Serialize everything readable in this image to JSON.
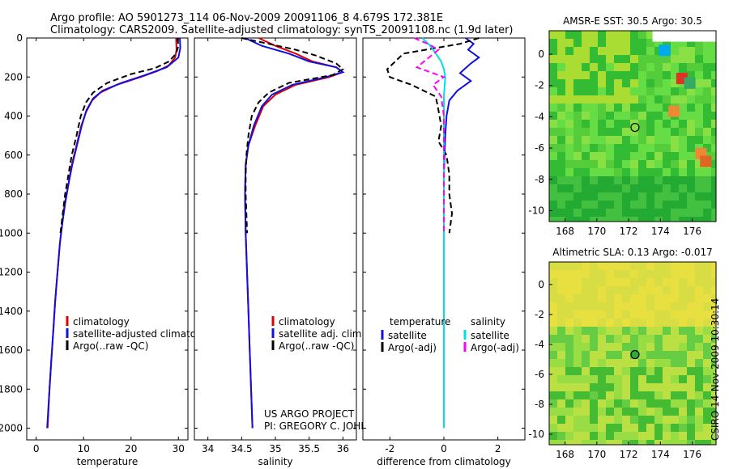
{
  "header": {
    "line1": "Argo profile: AO 5901273_114 06-Nov-2009 20091106_8 4.679S 172.381E",
    "line2": "Climatology: CARS2009. Satellite-adjusted climatology: synTS_20091108.nc (1.9d later)"
  },
  "side_label": "CSIRO 14-Nov-2009 10:30:14",
  "colors": {
    "climatology": "#e00000",
    "satellite": "#1010e0",
    "argo": "#000000",
    "salinity_satellite": "#00e0e0",
    "salinity_argo": "#ff00ff"
  },
  "chart_data": [
    {
      "type": "line",
      "id": "temperature",
      "xlabel": "temperature",
      "ylabel": "",
      "xlim": [
        -2,
        32
      ],
      "ylim": [
        2060,
        0
      ],
      "x_ticks": [
        0,
        10,
        20,
        30
      ],
      "y_ticks": [
        0,
        200,
        400,
        600,
        800,
        1000,
        1200,
        1400,
        1600,
        1800,
        2000
      ],
      "legend": [
        "climatology",
        "satellite-adjusted climatology",
        "Argo(..raw -QC)"
      ],
      "series": [
        {
          "name": "climatology",
          "color": "#e00000",
          "dash": false,
          "points": [
            [
              29.5,
              0
            ],
            [
              29.6,
              60
            ],
            [
              29.3,
              100
            ],
            [
              28,
              140
            ],
            [
              25.5,
              170
            ],
            [
              22,
              200
            ],
            [
              17,
              240
            ],
            [
              13.5,
              280
            ],
            [
              11.8,
              320
            ],
            [
              10.5,
              380
            ],
            [
              9.5,
              450
            ],
            [
              8.5,
              550
            ],
            [
              7.5,
              650
            ],
            [
              6.8,
              750
            ],
            [
              6,
              850
            ],
            [
              5.5,
              950
            ],
            [
              5,
              1050
            ],
            [
              4.5,
              1200
            ],
            [
              4,
              1350
            ],
            [
              3.6,
              1500
            ],
            [
              3.2,
              1650
            ],
            [
              2.8,
              1800
            ],
            [
              2.4,
              2000
            ]
          ]
        },
        {
          "name": "satellite-adjusted climatology",
          "color": "#1010e0",
          "dash": false,
          "points": [
            [
              30.3,
              0
            ],
            [
              30.4,
              50
            ],
            [
              30,
              100
            ],
            [
              27.5,
              150
            ],
            [
              23,
              190
            ],
            [
              18,
              230
            ],
            [
              14,
              270
            ],
            [
              12,
              310
            ],
            [
              10.6,
              370
            ],
            [
              9.6,
              450
            ],
            [
              8.6,
              550
            ],
            [
              7.6,
              650
            ],
            [
              6.8,
              750
            ],
            [
              6.1,
              850
            ],
            [
              5.5,
              950
            ],
            [
              5,
              1050
            ],
            [
              4.5,
              1200
            ],
            [
              4,
              1350
            ],
            [
              3.6,
              1500
            ],
            [
              3.2,
              1650
            ],
            [
              2.8,
              1800
            ],
            [
              2.3,
              2000
            ]
          ]
        },
        {
          "name": "Argo(..raw -QC)",
          "color": "#000000",
          "dash": true,
          "points": [
            [
              29.8,
              0
            ],
            [
              30,
              40
            ],
            [
              29.5,
              80
            ],
            [
              28,
              120
            ],
            [
              25,
              155
            ],
            [
              20,
              185
            ],
            [
              15,
              230
            ],
            [
              12,
              280
            ],
            [
              10.5,
              330
            ],
            [
              9.4,
              400
            ],
            [
              8.5,
              500
            ],
            [
              7.5,
              600
            ],
            [
              6.8,
              700
            ],
            [
              6.1,
              800
            ],
            [
              5.6,
              900
            ],
            [
              5.1,
              1000
            ]
          ]
        }
      ]
    },
    {
      "type": "line",
      "id": "salinity",
      "xlabel": "salinity",
      "xlim": [
        33.8,
        36.2
      ],
      "ylim": [
        2060,
        0
      ],
      "x_ticks": [
        34,
        34.5,
        35,
        35.5,
        36
      ],
      "x_tick_labels": [
        "34",
        "34.5",
        "35",
        "35.5",
        "36"
      ],
      "legend": [
        "climatology",
        "satellite adj. clim.",
        "Argo(..raw -QC)"
      ],
      "annotation": [
        "US ARGO PROJECT",
        "PI: GREGORY C. JOHNSON"
      ],
      "series": [
        {
          "name": "climatology",
          "color": "#e00000",
          "dash": false,
          "points": [
            [
              34.75,
              0
            ],
            [
              35.0,
              40
            ],
            [
              35.3,
              80
            ],
            [
              35.55,
              120
            ],
            [
              35.9,
              150
            ],
            [
              36.0,
              175
            ],
            [
              35.8,
              200
            ],
            [
              35.3,
              240
            ],
            [
              35.0,
              290
            ],
            [
              34.82,
              350
            ],
            [
              34.7,
              450
            ],
            [
              34.6,
              550
            ],
            [
              34.56,
              650
            ],
            [
              34.55,
              800
            ],
            [
              34.56,
              1000
            ],
            [
              34.58,
              1200
            ],
            [
              34.6,
              1400
            ],
            [
              34.62,
              1600
            ],
            [
              34.64,
              1800
            ],
            [
              34.66,
              2000
            ]
          ]
        },
        {
          "name": "satellite adj. clim.",
          "color": "#1010e0",
          "dash": false,
          "points": [
            [
              34.55,
              0
            ],
            [
              34.8,
              40
            ],
            [
              35.2,
              80
            ],
            [
              35.5,
              120
            ],
            [
              35.9,
              150
            ],
            [
              36.0,
              175
            ],
            [
              35.75,
              200
            ],
            [
              35.25,
              240
            ],
            [
              34.95,
              290
            ],
            [
              34.8,
              350
            ],
            [
              34.68,
              450
            ],
            [
              34.6,
              550
            ],
            [
              34.56,
              650
            ],
            [
              34.55,
              800
            ],
            [
              34.56,
              1000
            ],
            [
              34.58,
              1200
            ],
            [
              34.6,
              1400
            ],
            [
              34.62,
              1600
            ],
            [
              34.64,
              1800
            ],
            [
              34.66,
              2000
            ]
          ]
        },
        {
          "name": "Argo(..raw -QC)",
          "color": "#000000",
          "dash": true,
          "points": [
            [
              34.5,
              0
            ],
            [
              34.9,
              30
            ],
            [
              35.3,
              60
            ],
            [
              35.6,
              90
            ],
            [
              35.9,
              130
            ],
            [
              36.0,
              160
            ],
            [
              35.85,
              190
            ],
            [
              35.2,
              230
            ],
            [
              34.9,
              280
            ],
            [
              34.75,
              330
            ],
            [
              34.65,
              400
            ],
            [
              34.6,
              500
            ],
            [
              34.57,
              600
            ],
            [
              34.56,
              700
            ],
            [
              34.56,
              800
            ],
            [
              34.57,
              900
            ],
            [
              34.58,
              1000
            ]
          ]
        }
      ]
    },
    {
      "type": "line",
      "id": "difference",
      "xlabel": "difference from climatology",
      "xlim": [
        -3,
        3
      ],
      "ylim": [
        2060,
        0
      ],
      "x_ticks": [
        -2,
        0,
        2
      ],
      "legend_left_title": "temperature",
      "legend_right_title": "salinity",
      "legend": [
        "satellite",
        "Argo(-adj)",
        "satellite",
        "Argo(-adj)"
      ],
      "series": [
        {
          "name": "temperature satellite",
          "color": "#1010e0",
          "dash": false,
          "points": [
            [
              0.8,
              0
            ],
            [
              1.1,
              30
            ],
            [
              0.9,
              60
            ],
            [
              1.3,
              100
            ],
            [
              1.0,
              130
            ],
            [
              0.6,
              180
            ],
            [
              1.0,
              220
            ],
            [
              0.5,
              270
            ],
            [
              0.2,
              320
            ],
            [
              0.1,
              400
            ],
            [
              0.05,
              500
            ],
            [
              0,
              700
            ],
            [
              0,
              1000
            ],
            [
              0,
              1500
            ],
            [
              0,
              2000
            ]
          ]
        },
        {
          "name": "temperature Argo(-adj)",
          "color": "#000000",
          "dash": true,
          "points": [
            [
              1.3,
              0
            ],
            [
              0.6,
              30
            ],
            [
              -1.5,
              80
            ],
            [
              -2.1,
              160
            ],
            [
              -2.0,
              200
            ],
            [
              -1.2,
              240
            ],
            [
              -0.3,
              300
            ],
            [
              -0.2,
              370
            ],
            [
              -0.1,
              450
            ],
            [
              -0.2,
              530
            ],
            [
              0.1,
              600
            ],
            [
              0.2,
              700
            ],
            [
              0.2,
              800
            ],
            [
              0.3,
              900
            ],
            [
              0.2,
              1000
            ]
          ]
        },
        {
          "name": "salinity satellite",
          "color": "#00e0e0",
          "dash": false,
          "points": [
            [
              -0.8,
              0
            ],
            [
              -0.5,
              40
            ],
            [
              -0.3,
              80
            ],
            [
              -0.1,
              120
            ],
            [
              0,
              160
            ],
            [
              0.05,
              200
            ],
            [
              0,
              300
            ],
            [
              0,
              500
            ],
            [
              0,
              800
            ],
            [
              0,
              1200
            ],
            [
              0,
              1600
            ],
            [
              0,
              2000
            ]
          ]
        },
        {
          "name": "salinity Argo(-adj)",
          "color": "#ff00ff",
          "dash": true,
          "points": [
            [
              -1.1,
              0
            ],
            [
              -0.6,
              30
            ],
            [
              -0.2,
              60
            ],
            [
              -1.0,
              150
            ],
            [
              0,
              200
            ],
            [
              -0.4,
              240
            ],
            [
              -0.1,
              300
            ],
            [
              0,
              400
            ],
            [
              0,
              500
            ],
            [
              0,
              700
            ],
            [
              0,
              900
            ],
            [
              0,
              1000
            ]
          ]
        }
      ]
    },
    {
      "type": "heatmap",
      "id": "sst-map",
      "title": "AMSR-E SST: 30.5 Argo: 30.5",
      "xlim": [
        167,
        177.5
      ],
      "ylim": [
        -10.7,
        1.5
      ],
      "x_ticks": [
        168,
        170,
        172,
        174,
        176
      ],
      "y_ticks": [
        0,
        -2,
        -4,
        -6,
        -8,
        -10
      ],
      "marker": {
        "lon": 172.4,
        "lat": -4.68
      }
    },
    {
      "type": "heatmap",
      "id": "sla-map",
      "title": "Altimetric SLA: 0.13 Argo: -0.017",
      "xlim": [
        167,
        177.5
      ],
      "ylim": [
        -10.7,
        1.5
      ],
      "x_ticks": [
        168,
        170,
        172,
        174,
        176
      ],
      "y_ticks": [
        0,
        -2,
        -4,
        -6,
        -8,
        -10
      ],
      "marker": {
        "lon": 172.4,
        "lat": -4.68
      }
    }
  ]
}
